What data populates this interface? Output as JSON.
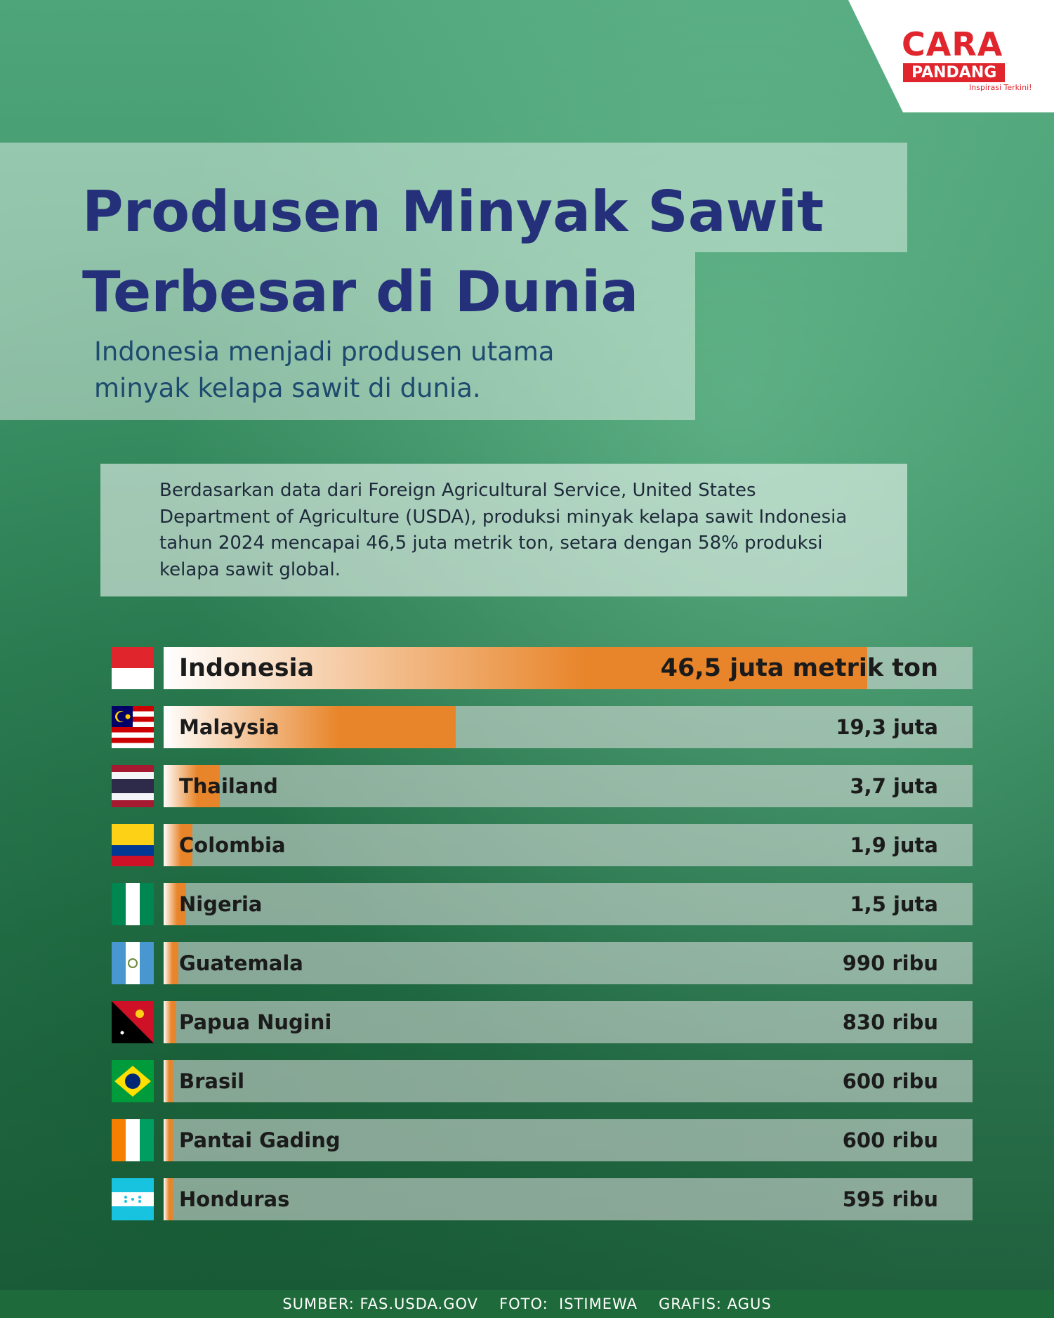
{
  "logo": {
    "name": "CARA",
    "name2": "PANDANG",
    "tagline": "Inspirasi Terkini!"
  },
  "chart_data": {
    "type": "bar",
    "title": "Produsen Minyak Sawit Terbesar di Dunia",
    "subtitle": "Indonesia menjadi produsen utama minyak kelapa sawit di dunia.",
    "description": "Berdasarkan data dari Foreign Agricultural Service, United States Department of Agriculture (USDA), produksi minyak kelapa sawit Indonesia tahun 2024 mencapai 46,5 juta metrik ton, setara dengan 58% produksi kelapa sawit global.",
    "categories": [
      "Indonesia",
      "Malaysia",
      "Thailand",
      "Colombia",
      "Nigeria",
      "Guatemala",
      "Papua Nugini",
      "Brasil",
      "Pantai Gading",
      "Honduras"
    ],
    "values": [
      46.5,
      19.3,
      3.7,
      1.9,
      1.5,
      0.99,
      0.83,
      0.6,
      0.6,
      0.595
    ],
    "value_labels": [
      "46,5 juta metrik ton",
      "19,3 juta",
      "3,7 juta",
      "1,9 juta",
      "1,5 juta",
      "990 ribu",
      "830 ribu",
      "600 ribu",
      "600 ribu",
      "595 ribu"
    ],
    "color": "#e8852a"
  },
  "footer": {
    "source": "SUMBER: FAS.USDA.GOV",
    "photo": "FOTO:  ISTIMEWA",
    "graphic": "GRAFIS: AGUS"
  }
}
